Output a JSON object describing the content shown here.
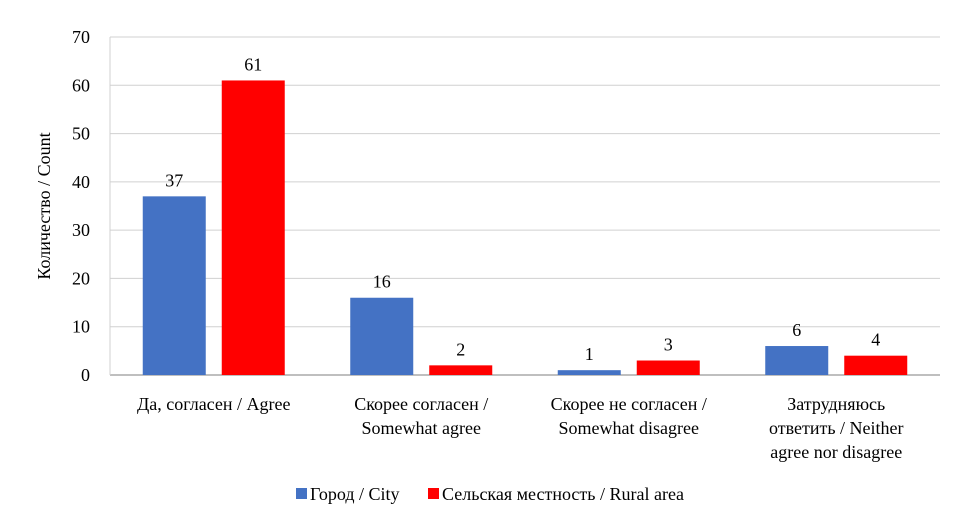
{
  "chart_data": {
    "type": "bar",
    "ylabel": "Количество / Count",
    "ylim": [
      0,
      70
    ],
    "yticks": [
      0,
      10,
      20,
      30,
      40,
      50,
      60,
      70
    ],
    "grid": true,
    "legend_position": "bottom",
    "categories": [
      [
        "Да, согласен / Agree"
      ],
      [
        "Скорее согласен /",
        "Somewhat agree"
      ],
      [
        "Скорее не согласен /",
        "Somewhat disagree"
      ],
      [
        "Затрудняюсь",
        "ответить / Neither",
        "agree nor disagree"
      ]
    ],
    "series": [
      {
        "name": "Город / City",
        "color": "#4472C4",
        "values": [
          37,
          16,
          1,
          6
        ]
      },
      {
        "name": "Сельская местность / Rural area",
        "color": "#FF0000",
        "values": [
          61,
          2,
          3,
          4
        ]
      }
    ]
  }
}
